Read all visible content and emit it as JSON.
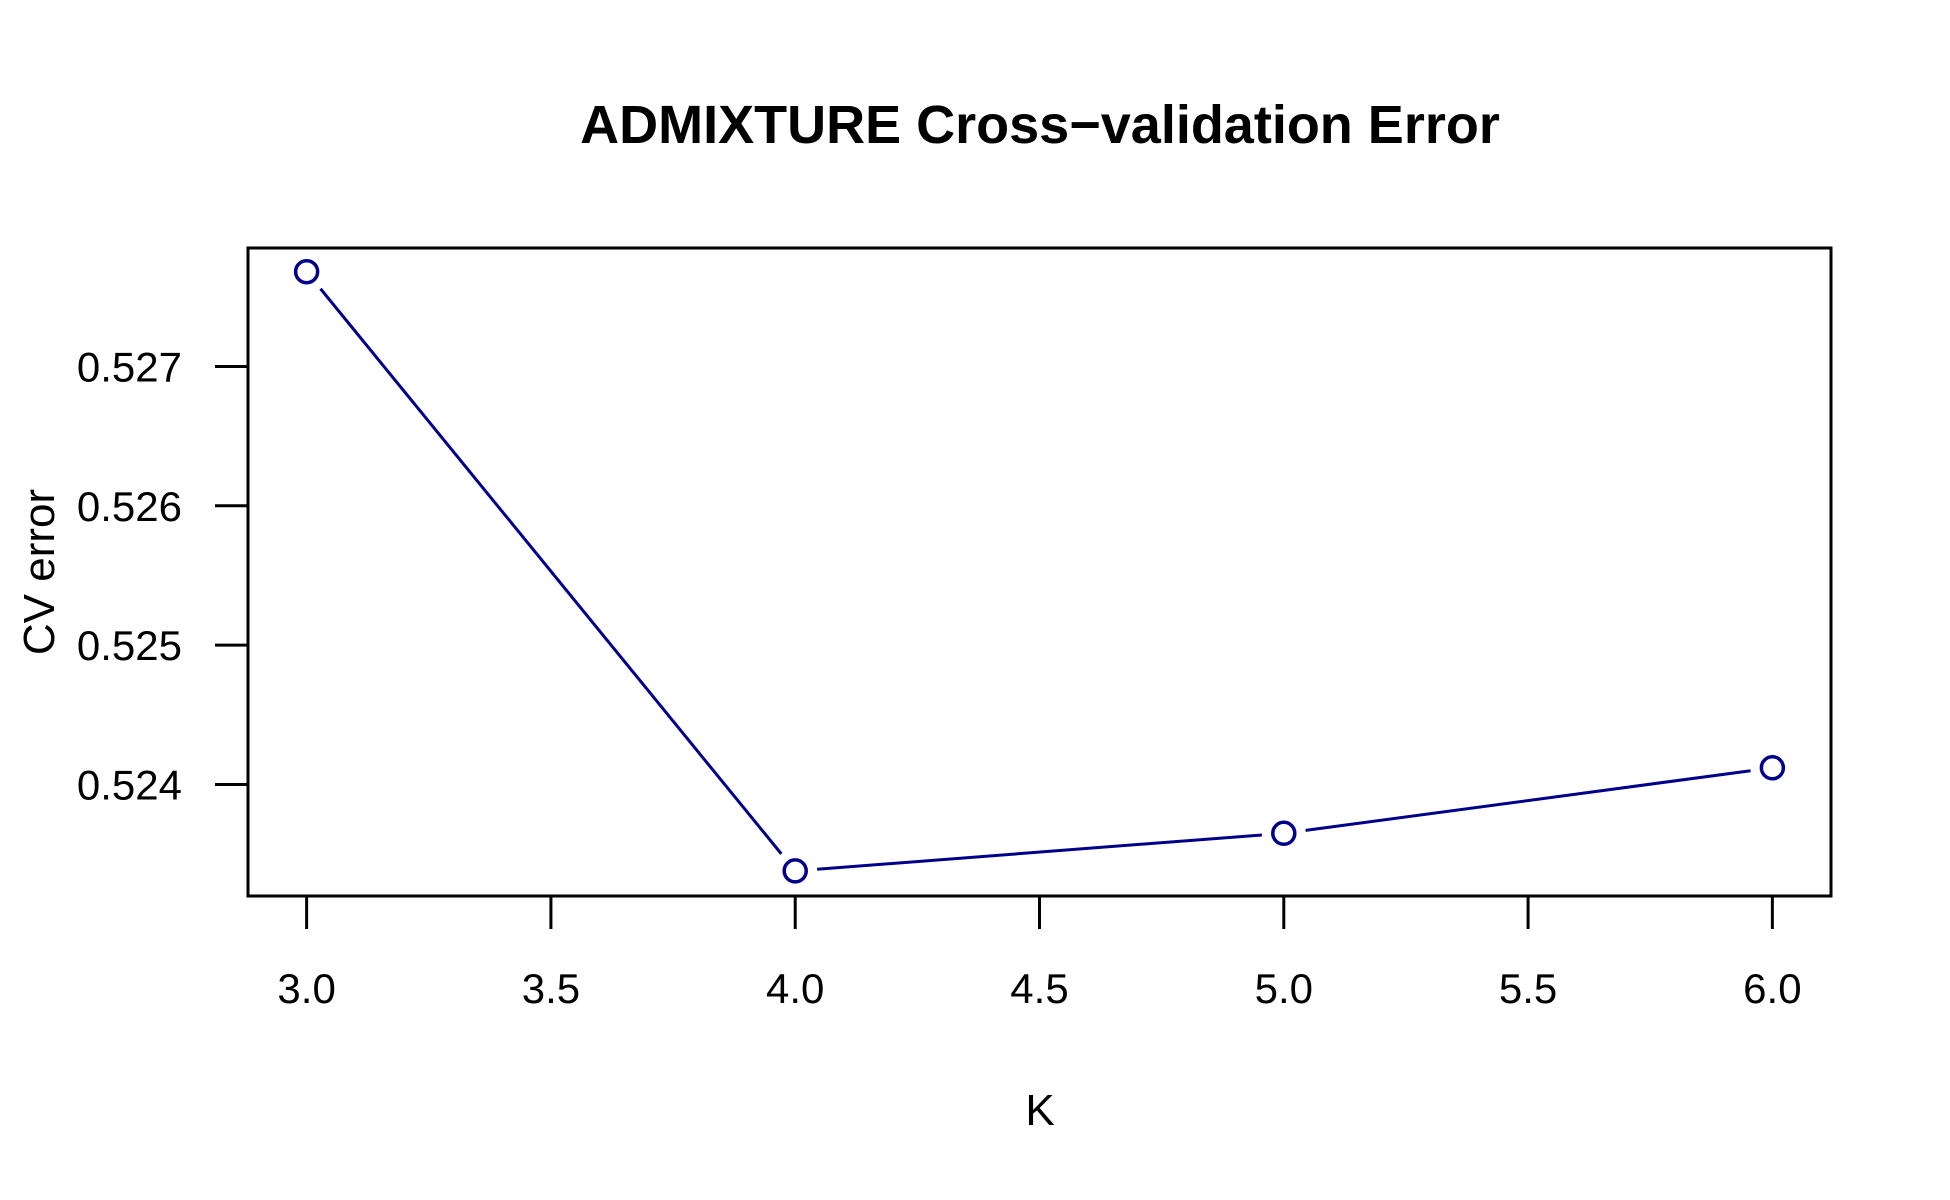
{
  "chart_data": {
    "type": "line",
    "title": "ADMIXTURE Cross−validation Error",
    "xlabel": "K",
    "ylabel": "CV error",
    "x": [
      3,
      4,
      5,
      6
    ],
    "series": [
      {
        "values": [
          0.52768,
          0.52338,
          0.52365,
          0.52412
        ]
      }
    ],
    "xlim": [
      2.88,
      6.12
    ],
    "ylim": [
      0.5232,
      0.52785
    ],
    "x_ticks": [
      "3.0",
      "3.5",
      "4.0",
      "4.5",
      "5.0",
      "5.5",
      "6.0"
    ],
    "y_ticks": [
      "0.524",
      "0.525",
      "0.526",
      "0.527"
    ],
    "line_color": "#00008B",
    "marker": "open-circle",
    "grid": false,
    "legend": "none"
  }
}
